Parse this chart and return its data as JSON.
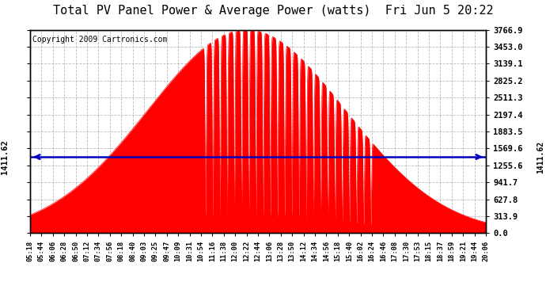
{
  "title": "Total PV Panel Power & Average Power (watts)  Fri Jun 5 20:22",
  "copyright": "Copyright 2009 Cartronics.com",
  "avg_power": 1411.62,
  "y_max": 3766.9,
  "y_ticks": [
    0.0,
    313.9,
    627.8,
    941.7,
    1255.6,
    1569.6,
    1883.5,
    2197.4,
    2511.3,
    2825.2,
    3139.1,
    3453.0,
    3766.9
  ],
  "x_labels": [
    "05:18",
    "05:44",
    "06:06",
    "06:28",
    "06:50",
    "07:12",
    "07:34",
    "07:56",
    "08:18",
    "08:40",
    "09:03",
    "09:25",
    "09:47",
    "10:09",
    "10:31",
    "10:54",
    "11:16",
    "11:38",
    "12:00",
    "12:22",
    "12:44",
    "13:06",
    "13:28",
    "13:50",
    "14:12",
    "14:34",
    "14:56",
    "15:18",
    "15:40",
    "16:02",
    "16:24",
    "16:46",
    "17:08",
    "17:30",
    "17:53",
    "18:15",
    "18:37",
    "18:59",
    "19:21",
    "19:44",
    "20:06"
  ],
  "fill_color": "#FF0000",
  "line_color": "#FF0000",
  "avg_line_color": "#0000BB",
  "bg_color": "#FFFFFF",
  "plot_bg_color": "#FFFFFF",
  "grid_color": "#AAAAAA",
  "title_color": "#000000",
  "title_fontsize": 11,
  "copyright_fontsize": 7,
  "left_label": "1411.62",
  "right_label": "1411.62"
}
